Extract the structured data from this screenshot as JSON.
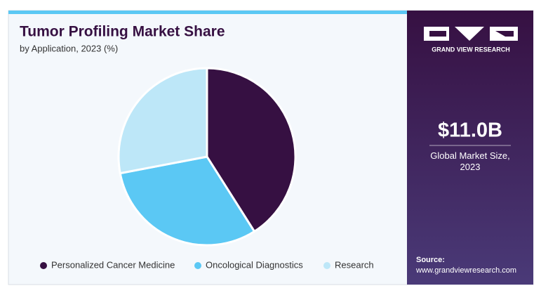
{
  "chart_data": {
    "type": "pie",
    "title": "Tumor Profiling Market Share",
    "subtitle": "by Application, 2023 (%)",
    "categories": [
      "Personalized Cancer Medicine",
      "Oncological Diagnostics",
      "Research"
    ],
    "values": [
      41,
      31,
      28
    ],
    "colors": [
      "#361042",
      "#5bc8f4",
      "#bde7f8"
    ],
    "legend": "bottom"
  },
  "panel": {
    "brand": "GRAND VIEW RESEARCH",
    "market_size": "$11.0B",
    "market_size_label": "Global Market Size, 2023",
    "source_label": "Source:",
    "source_url": "www.grandviewresearch.com"
  }
}
